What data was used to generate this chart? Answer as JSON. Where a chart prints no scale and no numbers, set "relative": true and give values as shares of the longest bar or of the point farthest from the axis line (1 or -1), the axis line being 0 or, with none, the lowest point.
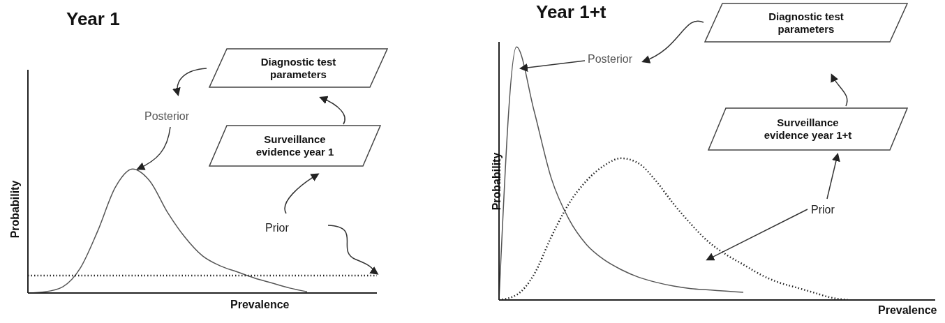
{
  "chart_data": [
    {
      "type": "line",
      "title": "Year 1",
      "xlabel": "Prevalence",
      "ylabel": "Probability",
      "relative": true,
      "legend": false,
      "grid": false,
      "categories": [
        null,
        null,
        null,
        null,
        null,
        null,
        null,
        null,
        null,
        null,
        null,
        null,
        null,
        null,
        null,
        null,
        null,
        null,
        null,
        null,
        null
      ],
      "series": [
        {
          "name": "Posterior",
          "color": "#555555",
          "line_style": "solid",
          "values": [
            0,
            0.01,
            0.05,
            0.2,
            0.5,
            0.85,
            1,
            0.9,
            0.65,
            0.45,
            0.3,
            0.22,
            0.17,
            0.12,
            0.08,
            0.04,
            0.01,
            null,
            null,
            null,
            null
          ]
        },
        {
          "name": "Prior",
          "color": "#222222",
          "line_style": "dotted",
          "values": [
            0.14,
            0.14,
            0.14,
            0.14,
            0.14,
            0.14,
            0.14,
            0.14,
            0.14,
            0.14,
            0.14,
            0.14,
            0.14,
            0.14,
            0.14,
            0.14,
            0.14,
            0.14,
            0.14,
            0.14,
            0.14
          ]
        }
      ],
      "annotations": [
        "Diagnostic test parameters",
        "Surveillance evidence year 1"
      ]
    },
    {
      "type": "line",
      "title": "Year 1+t",
      "xlabel": "Prevalence",
      "ylabel": "Probability",
      "relative": true,
      "legend": false,
      "grid": false,
      "categories": [
        null,
        null,
        null,
        null,
        null,
        null,
        null,
        null,
        null,
        null,
        null,
        null,
        null,
        null,
        null,
        null,
        null,
        null,
        null,
        null,
        null,
        null,
        null,
        null,
        null,
        null
      ],
      "series": [
        {
          "name": "Posterior",
          "color": "#555555",
          "line_style": "solid",
          "values": [
            0,
            1,
            0.75,
            0.48,
            0.32,
            0.22,
            0.16,
            0.12,
            0.09,
            0.07,
            0.055,
            0.045,
            0.04,
            0.035,
            0.03,
            null,
            null,
            null,
            null,
            null,
            null,
            null,
            null,
            null,
            null,
            null
          ]
        },
        {
          "name": "Prior",
          "color": "#222222",
          "line_style": "dotted",
          "values": [
            0,
            0.02,
            0.1,
            0.25,
            0.38,
            0.47,
            0.53,
            0.56,
            0.54,
            0.47,
            0.38,
            0.3,
            0.23,
            0.18,
            0.14,
            0.1,
            0.07,
            0.05,
            0.03,
            0.01,
            0,
            null,
            null,
            null,
            null,
            null
          ]
        }
      ],
      "annotations": [
        "Diagnostic test parameters",
        "Surveillance evidence year 1+t"
      ]
    }
  ]
}
